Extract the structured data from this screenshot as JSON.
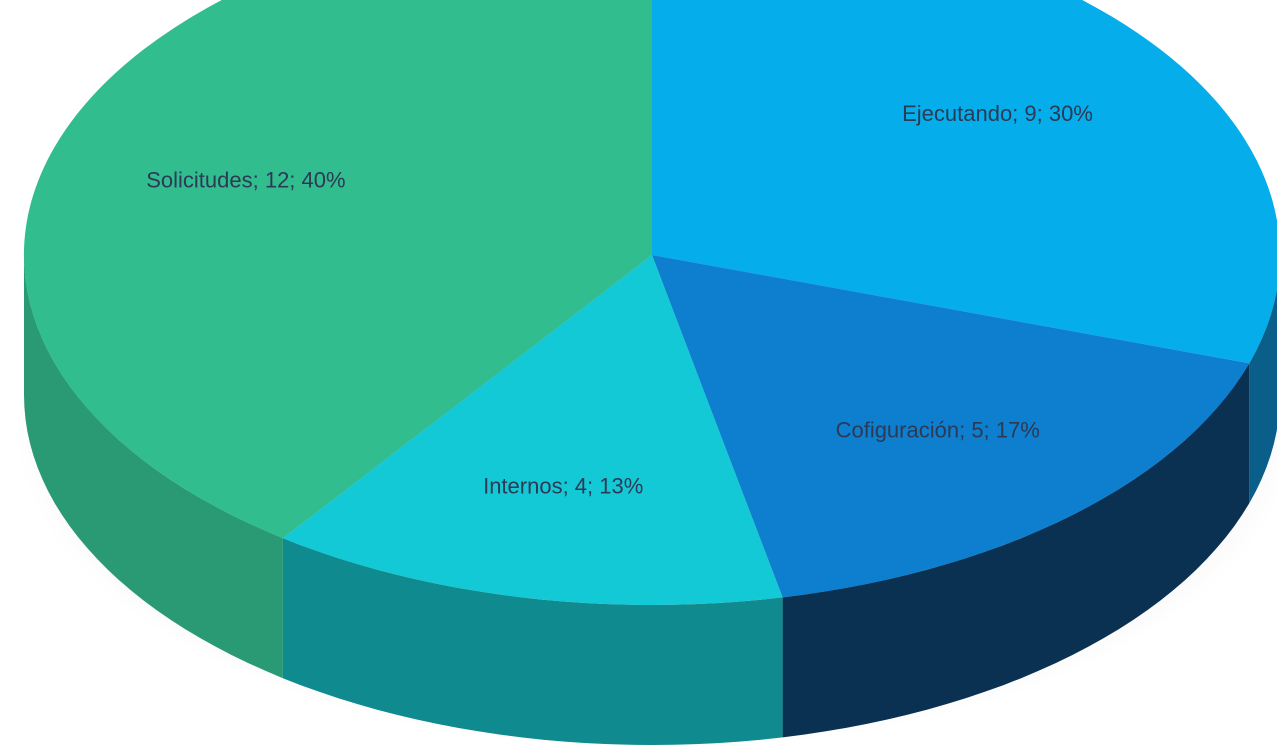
{
  "chart_data": {
    "type": "pie",
    "title": "",
    "slices": [
      {
        "name": "Ejecutando",
        "value": 9,
        "percent": 30,
        "label": "Ejecutando; 9; 30%",
        "color": "#05aeea",
        "side_color": "#0a5f8a"
      },
      {
        "name": "Cofiguración",
        "value": 5,
        "percent": 17,
        "label": "Cofiguración; 5; 17%",
        "color": "#0e7fcf",
        "side_color": "#0a3152"
      },
      {
        "name": "Internos",
        "value": 4,
        "percent": 13,
        "label": "Internos; 4; 13%",
        "color": "#13c9d6",
        "side_color": "#0f8a8f"
      },
      {
        "name": "Solicitudes",
        "value": 12,
        "percent": 40,
        "label": "Solicitudes; 12; 40%",
        "color": "#32bd8f",
        "side_color": "#2a9a74"
      }
    ],
    "legend": "none",
    "style": "3d"
  }
}
